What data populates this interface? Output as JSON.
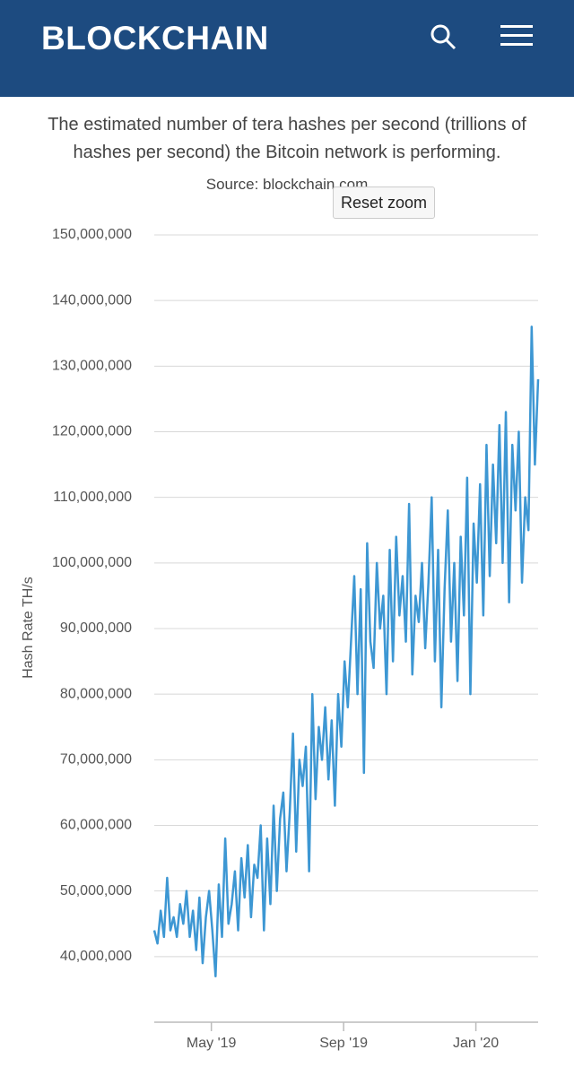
{
  "header": {
    "title": "BLOCKCHAIN"
  },
  "ui": {
    "button": "Reset zoom"
  },
  "chart_data": {
    "type": "line",
    "title": "The estimated number of tera hashes per second (trillions of hashes per second) the Bitcoin network is performing.",
    "subtitle": "Source: blockchain.com",
    "y_label": "Hash Rate TH/s",
    "color": "#3d97d3",
    "grid": true,
    "xlim": [
      0,
      119
    ],
    "xticks": [
      {
        "value": 17.7,
        "label": "May '19"
      },
      {
        "value": 58.7,
        "label": "Sep '19"
      },
      {
        "value": 99.7,
        "label": "Jan '20"
      }
    ],
    "ylim": [
      30000000,
      150000000
    ],
    "yticks": [
      {
        "value": 40000000,
        "label": "40,000,000"
      },
      {
        "value": 50000000,
        "label": "50,000,000"
      },
      {
        "value": 60000000,
        "label": "60,000,000"
      },
      {
        "value": 70000000,
        "label": "70,000,000"
      },
      {
        "value": 80000000,
        "label": "80,000,000"
      },
      {
        "value": 90000000,
        "label": "90,000,000"
      },
      {
        "value": 100000000,
        "label": "100,000,000"
      },
      {
        "value": 110000000,
        "label": "110,000,000"
      },
      {
        "value": 120000000,
        "label": "120,000,000"
      },
      {
        "value": 130000000,
        "label": "130,000,000"
      },
      {
        "value": 140000000,
        "label": "140,000,000"
      },
      {
        "value": 150000000,
        "label": "150,000,000"
      }
    ],
    "values": [
      44000000,
      42000000,
      47000000,
      43000000,
      52000000,
      44000000,
      46000000,
      43000000,
      48000000,
      45000000,
      50000000,
      43000000,
      47000000,
      41000000,
      49000000,
      39000000,
      46000000,
      50000000,
      44000000,
      37000000,
      51000000,
      43000000,
      58000000,
      45000000,
      48000000,
      53000000,
      44000000,
      55000000,
      49000000,
      57000000,
      46000000,
      54000000,
      52000000,
      60000000,
      44000000,
      58000000,
      48000000,
      63000000,
      50000000,
      61000000,
      65000000,
      53000000,
      62000000,
      74000000,
      56000000,
      70000000,
      66000000,
      72000000,
      53000000,
      80000000,
      64000000,
      75000000,
      70000000,
      78000000,
      67000000,
      76000000,
      63000000,
      80000000,
      72000000,
      85000000,
      78000000,
      88000000,
      98000000,
      80000000,
      96000000,
      68000000,
      103000000,
      88000000,
      84000000,
      100000000,
      90000000,
      95000000,
      80000000,
      102000000,
      85000000,
      104000000,
      92000000,
      98000000,
      88000000,
      109000000,
      83000000,
      95000000,
      91000000,
      100000000,
      87000000,
      97000000,
      110000000,
      85000000,
      102000000,
      78000000,
      96000000,
      108000000,
      88000000,
      100000000,
      82000000,
      104000000,
      92000000,
      113000000,
      80000000,
      106000000,
      97000000,
      112000000,
      92000000,
      118000000,
      98000000,
      115000000,
      103000000,
      121000000,
      100000000,
      123000000,
      94000000,
      118000000,
      108000000,
      120000000,
      97000000,
      110000000,
      105000000,
      136000000,
      115000000,
      128000000
    ]
  }
}
